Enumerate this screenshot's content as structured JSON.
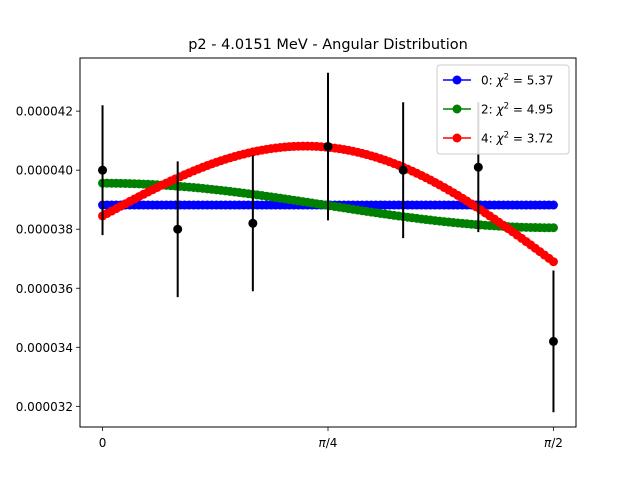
{
  "chart_data": {
    "type": "scatter",
    "title": "p2 - 4.0151 MeV - Angular Distribution",
    "xlabel": "",
    "ylabel": "",
    "xlim": [
      -0.0785,
      1.6493
    ],
    "ylim": [
      3.13e-05,
      4.38e-05
    ],
    "x_ticks": [
      {
        "value": 0,
        "label": "0"
      },
      {
        "value": 0.7854,
        "label": "π/4",
        "italic_part": "π",
        "rest": "/4"
      },
      {
        "value": 1.5708,
        "label": "π/2",
        "italic_part": "π",
        "rest": "/2"
      }
    ],
    "y_ticks": [
      {
        "value": 3.2e-05,
        "label": "0.000032"
      },
      {
        "value": 3.4e-05,
        "label": "0.000034"
      },
      {
        "value": 3.6e-05,
        "label": "0.000036"
      },
      {
        "value": 3.8e-05,
        "label": "0.000038"
      },
      {
        "value": 4e-05,
        "label": "0.000040"
      },
      {
        "value": 4.2e-05,
        "label": "0.000042"
      }
    ],
    "grid": false,
    "legend_position": "top-right",
    "data_points": {
      "color": "#000000",
      "x": [
        0,
        0.2618,
        0.5236,
        0.7854,
        1.0472,
        1.309,
        1.5708
      ],
      "y": [
        4e-05,
        3.8e-05,
        3.82e-05,
        4.08e-05,
        4e-05,
        4.01e-05,
        3.42e-05
      ],
      "err": [
        2.2e-06,
        2.3e-06,
        2.3e-06,
        2.5e-06,
        2.3e-06,
        2.2e-06,
        2.4e-06
      ]
    },
    "series": [
      {
        "name": "0: ",
        "chi_label": "χ",
        "chi_sup": "2",
        "chi_value": " = 5.37",
        "color": "#0000ff",
        "model": "const",
        "c": 3.882e-05
      },
      {
        "name": "2: ",
        "chi_label": "χ",
        "chi_sup": "2",
        "chi_value": " = 4.95",
        "color": "#008000",
        "model": "cos2",
        "a": 3.805e-05,
        "b": 1.51e-06
      },
      {
        "name": "4: ",
        "chi_label": "χ",
        "chi_sup": "2",
        "chi_value": " = 3.72",
        "color": "#ff0000",
        "model": "sin_bump",
        "start": 3.845e-05,
        "end": 3.69e-05,
        "amp": 3.1e-06
      }
    ]
  }
}
